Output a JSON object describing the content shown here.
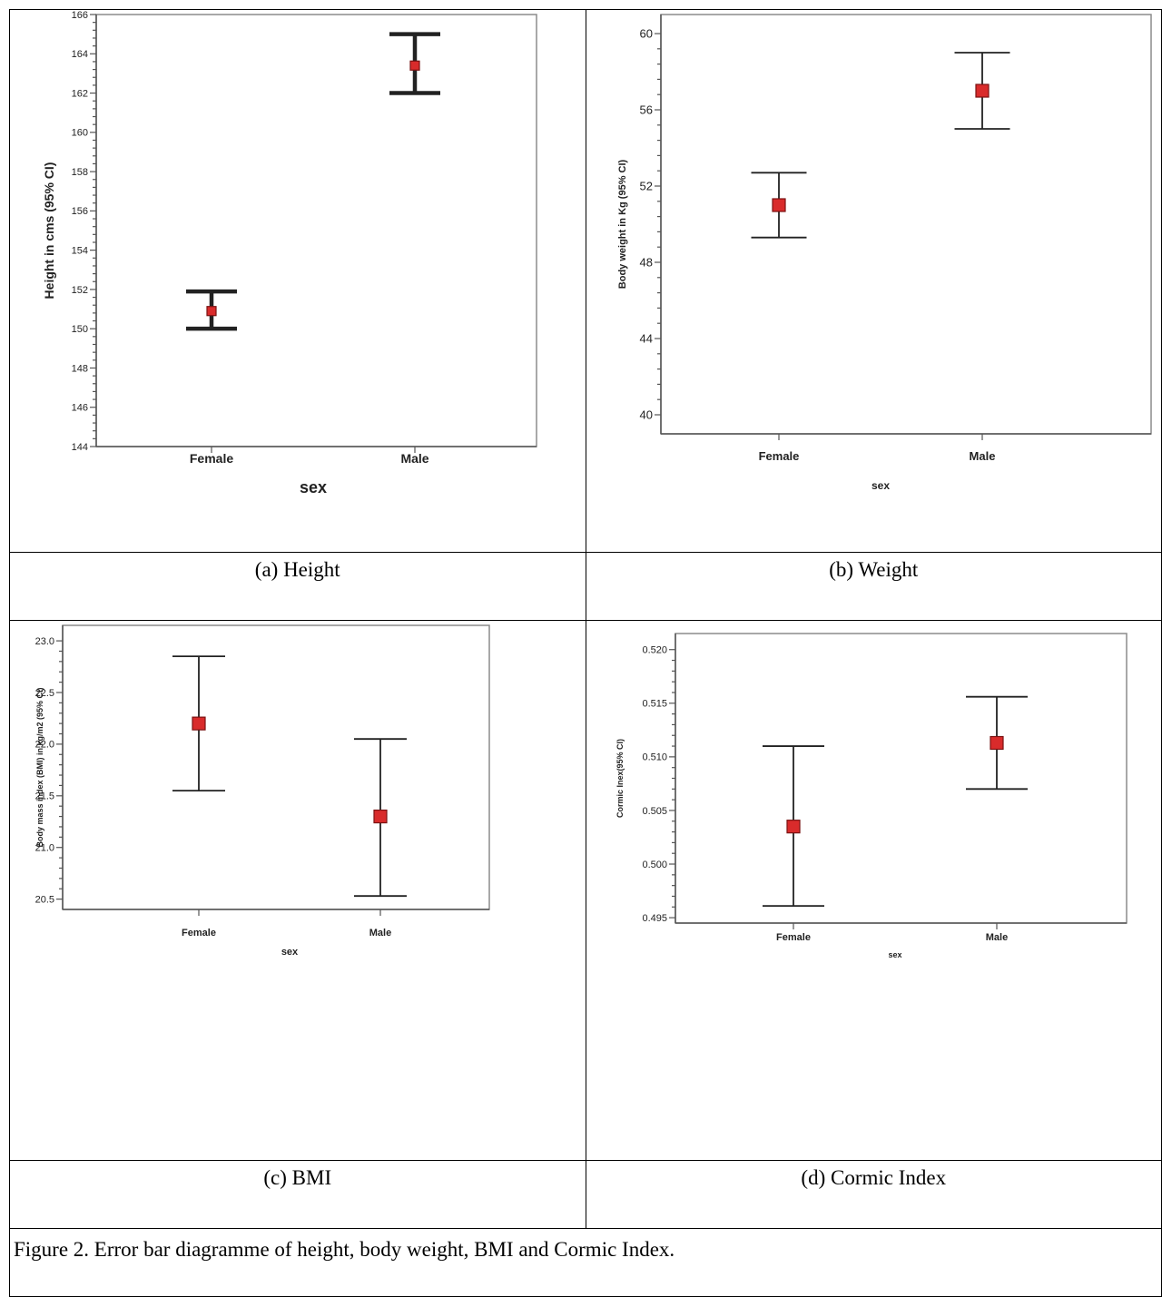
{
  "captions": {
    "a": "(a) Height",
    "b": "(b) Weight",
    "c": "(c) BMI",
    "d": "(d) Cormic Index",
    "figure": "Figure 2. Error bar diagramme of height, body weight, BMI and Cormic Index."
  },
  "chart_data": [
    {
      "id": "a",
      "type": "errorbar",
      "categories": [
        "Female",
        "Male"
      ],
      "xlabel": "sex",
      "ylabel": "Height in cms (95% CI)",
      "ylim": [
        144,
        166
      ],
      "yticks": [
        "144",
        "146",
        "148",
        "150",
        "152",
        "154",
        "156",
        "158",
        "160",
        "162",
        "164",
        "166"
      ],
      "points": [
        {
          "category": "Female",
          "mean": 150.9,
          "lower": 150.0,
          "upper": 151.9
        },
        {
          "category": "Male",
          "mean": 163.4,
          "lower": 162.0,
          "upper": 165.0
        }
      ],
      "colors": {
        "marker": "#d92b2b",
        "bar": "#222222"
      }
    },
    {
      "id": "b",
      "type": "errorbar",
      "categories": [
        "Female",
        "Male"
      ],
      "xlabel": "sex",
      "ylabel": "Body weight in Kg (95% CI)",
      "ylim": [
        39,
        61
      ],
      "yticks": [
        "40",
        "44",
        "48",
        "52",
        "56",
        "60"
      ],
      "points": [
        {
          "category": "Female",
          "mean": 51.0,
          "lower": 49.3,
          "upper": 52.7
        },
        {
          "category": "Male",
          "mean": 57.0,
          "lower": 55.0,
          "upper": 59.0
        }
      ],
      "colors": {
        "marker": "#d92b2b",
        "bar": "#222222"
      }
    },
    {
      "id": "c",
      "type": "errorbar",
      "categories": [
        "Female",
        "Male"
      ],
      "xlabel": "sex",
      "ylabel": "Body mass index (BMI) in kg/m2 (95% CI)",
      "ylim": [
        20.4,
        23.15
      ],
      "yticks": [
        "20.5",
        "21.0",
        "21.5",
        "22.0",
        "22.5",
        "23.0"
      ],
      "points": [
        {
          "category": "Female",
          "mean": 22.2,
          "lower": 21.55,
          "upper": 22.85
        },
        {
          "category": "Male",
          "mean": 21.3,
          "lower": 20.53,
          "upper": 22.05
        }
      ],
      "colors": {
        "marker": "#d92b2b",
        "bar": "#222222"
      }
    },
    {
      "id": "d",
      "type": "errorbar",
      "categories": [
        "Female",
        "Male"
      ],
      "xlabel": "sex",
      "ylabel": "Cormic Inex(95% CI)",
      "ylim": [
        0.4945,
        0.5215
      ],
      "yticks": [
        "0.495",
        "0.500",
        "0.505",
        "0.510",
        "0.515",
        "0.520"
      ],
      "points": [
        {
          "category": "Female",
          "mean": 0.5035,
          "lower": 0.4961,
          "upper": 0.511
        },
        {
          "category": "Male",
          "mean": 0.5113,
          "lower": 0.507,
          "upper": 0.5156
        }
      ],
      "colors": {
        "marker": "#d92b2b",
        "bar": "#222222"
      }
    }
  ]
}
